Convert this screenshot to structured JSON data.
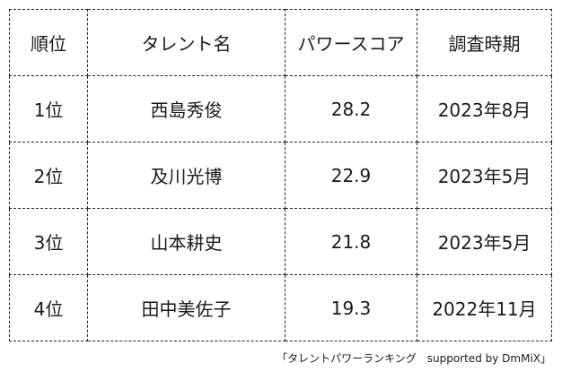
{
  "table": {
    "headers": {
      "rank": "順位",
      "name": "タレント名",
      "score": "パワースコア",
      "date": "調査時期"
    },
    "rows": [
      {
        "rank": "1位",
        "name": "西島秀俊",
        "score": "28.2",
        "date": "2023年8月"
      },
      {
        "rank": "2位",
        "name": "及川光博",
        "score": "22.9",
        "date": "2023年5月"
      },
      {
        "rank": "3位",
        "name": "山本耕史",
        "score": "21.8",
        "date": "2023年5月"
      },
      {
        "rank": "4位",
        "name": "田中美佐子",
        "score": "19.3",
        "date": "2022年11月"
      }
    ]
  },
  "source": "「タレントパワーランキング　supported by DmMiX」"
}
